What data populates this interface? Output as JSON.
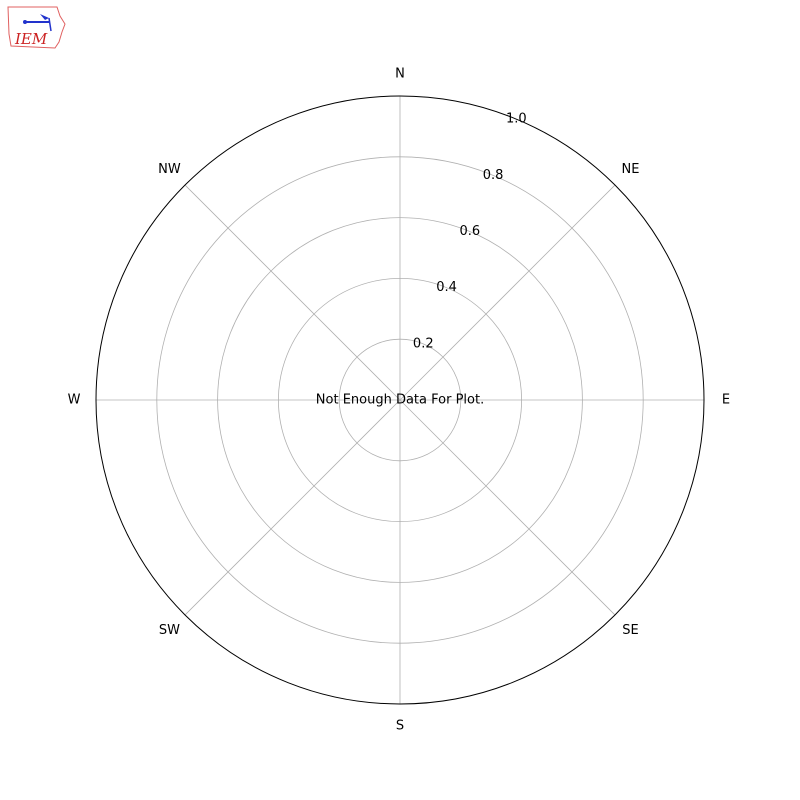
{
  "logo": {
    "text": "IEM",
    "colors": {
      "outline": "#e06060",
      "text": "#cc2222",
      "mark": "#2233cc"
    }
  },
  "chart_data": {
    "type": "polar",
    "direction_labels": [
      "N",
      "NE",
      "E",
      "SE",
      "S",
      "SW",
      "W",
      "NW"
    ],
    "radial_ticks": [
      "0.2",
      "0.4",
      "0.6",
      "0.8",
      "1.0"
    ],
    "radial_tick_values": [
      0.2,
      0.4,
      0.6,
      0.8,
      1.0
    ],
    "rlim": [
      0,
      1.0
    ],
    "grid": true,
    "series": [],
    "annotation": "Not Enough Data For Plot."
  }
}
